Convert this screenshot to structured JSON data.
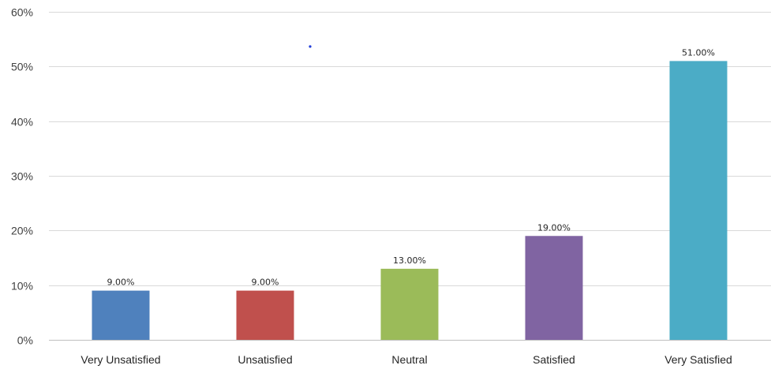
{
  "chart_data": {
    "type": "bar",
    "categories": [
      "Very Unsatisfied",
      "Unsatisfied",
      "Neutral",
      "Satisfied",
      "Very Satisfied"
    ],
    "values": [
      9.0,
      9.0,
      13.0,
      19.0,
      51.0
    ],
    "data_labels": [
      "9.00%",
      "9.00%",
      "13.00%",
      "19.00%",
      "51.00%"
    ],
    "colors": [
      "#4f81bd",
      "#c0504d",
      "#9bbb59",
      "#8064a2",
      "#4bacc6"
    ],
    "ylim": [
      0,
      60
    ],
    "yticks": [
      0,
      10,
      20,
      30,
      40,
      50,
      60
    ],
    "ytick_labels": [
      "0%",
      "10%",
      "20%",
      "30%",
      "40%",
      "50%",
      "60%"
    ],
    "grid": true,
    "title": "",
    "xlabel": "",
    "ylabel": ""
  }
}
